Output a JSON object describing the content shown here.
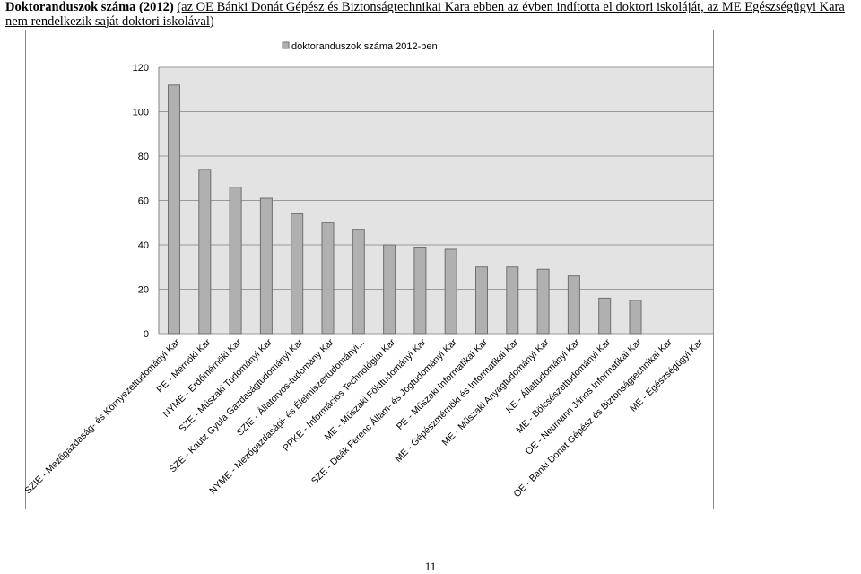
{
  "heading": {
    "bold_part": "Doktoranduszok száma (2012)",
    "underlined_part": "(az OE Bánki Donát Gépész és Biztonságtechnikai Kara ebben az évben indította el doktori iskoláját, az ME Egészségügyi Kara nem rendelkezik saját doktori iskolával)"
  },
  "page_number": "11",
  "colors": {
    "bar_fill": "#b0b0b0",
    "bar_stroke": "#6f6f6f",
    "plot_bg": "#e3e3e3",
    "grid": "#9a9a9a"
  },
  "chart_data": {
    "type": "bar",
    "title": "",
    "xlabel": "",
    "ylabel": "",
    "ylim": [
      0,
      120
    ],
    "yticks": [
      0,
      20,
      40,
      60,
      80,
      100,
      120
    ],
    "grid": true,
    "legend_position": "top",
    "categories": [
      "SZIE - Mezőgazdaság- és Környezettudományi Kar",
      "PE - Mérnöki Kar",
      "NYME - Erdőmérnöki Kar",
      "SZE - Műszaki Tudományi Kar",
      "SZE - Kautz Gyula Gazdaságtudományi Kar",
      "SZIE - Állatorvos-tudomány Kar",
      "NYME - Mezőgazdasági- és Élelmiszertudományi...",
      "PPKE - Információs Technológiai Kar",
      "ME - Műszaki Földtudományi Kar",
      "SZE - Deák Ferenc Állam- és Jogtudományi Kar",
      "PE - Műszaki Informatikai Kar",
      "ME - Gépészmérnöki és Informatikai Kar",
      "ME - Műszaki Anyagtudományi Kar",
      "KE - Állattudományi Kar",
      "ME - Bölcsészettudományi Kar",
      "OE - Neumann János Informatikai Kar",
      "OE - Bánki Donát Gépész és Biztonságtechnikai Kar",
      "ME - Egészségügyi Kar"
    ],
    "series": [
      {
        "name": "doktoranduszok száma 2012-ben",
        "values": [
          112,
          74,
          66,
          61,
          54,
          50,
          47,
          40,
          39,
          38,
          30,
          30,
          29,
          26,
          16,
          15,
          0,
          0
        ]
      }
    ]
  }
}
